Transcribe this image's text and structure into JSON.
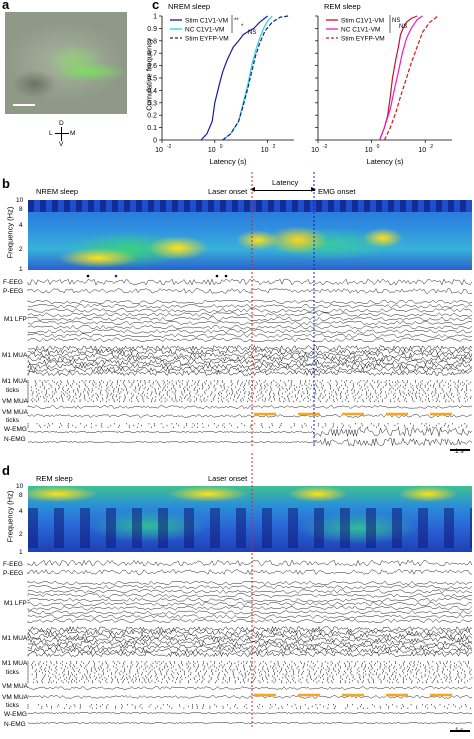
{
  "panels": {
    "a": {
      "letter": "a",
      "compass": {
        "d": "D",
        "l": "L",
        "m": "M",
        "v": "V"
      }
    },
    "c": {
      "letter": "c",
      "shared": {
        "ylabel": "Cumulative frequency",
        "xlabel": "Latency (s)"
      },
      "ytick_labels": [
        "0",
        "0.1",
        "0.2",
        "0.3",
        "0.4",
        "0.5",
        "0.6",
        "0.7",
        "0.8",
        "0.9",
        "1"
      ],
      "xtick_labels": [
        "10",
        "10",
        "10"
      ],
      "xtick_exponents": [
        "-2",
        "0",
        "2"
      ]
    },
    "b": {
      "letter": "b",
      "state": "NREM sleep",
      "laser_onset": "Laser onset",
      "latency": "Latency",
      "emg_onset": "EMG onset",
      "freq_axis_label": "Frequency (Hz)",
      "freq_ticks": [
        "10",
        "8",
        "4",
        "2",
        "1"
      ],
      "trace_labels": [
        "F-EEG",
        "P-EEG",
        "M1 LFP",
        "M1 MUA",
        "M1 MUA",
        "ticks",
        "VM MUA",
        "VM MUA",
        "ticks",
        "W-EMG",
        "N-EMG"
      ],
      "scale_bar": "1 s"
    },
    "d": {
      "letter": "d",
      "state": "REM sleep",
      "laser_onset": "Laser onset",
      "freq_axis_label": "Frequency (Hz)",
      "freq_ticks": [
        "10",
        "8",
        "4",
        "2",
        "1"
      ],
      "trace_labels": [
        "F-EEG",
        "P-EEG",
        "M1 LFP",
        "M1 MUA",
        "M1 MUA",
        "ticks",
        "VM MUA",
        "VM MUA",
        "ticks",
        "W-EMG",
        "N-EMG"
      ],
      "scale_bar": "1 s"
    }
  },
  "colors": {
    "stim_c1v1_nrem": "#1a1aa6",
    "nc_c1v1_nrem": "#22d4e0",
    "stim_eyfp_nrem": "#1a1a80",
    "stim_c1v1_rem": "#c8102e",
    "nc_c1v1_rem": "#e020c8",
    "stim_eyfp_rem": "#d01818",
    "laser_line": "#e02020",
    "emg_line": "#1a1ad0",
    "stim_bars": "#f5a623"
  },
  "chart_data": [
    {
      "type": "line",
      "title": "NREM sleep",
      "xlabel": "Latency (s)",
      "ylabel": "Cumulative frequency",
      "x_scale": "log",
      "xlim": [
        0.01,
        1000
      ],
      "ylim": [
        0,
        1
      ],
      "grid": false,
      "legend": "top-left",
      "significance": [
        "**",
        "*",
        "NS"
      ],
      "series": [
        {
          "name": "Stim C1V1-VM",
          "style": "solid",
          "color": "#1a1aa6",
          "x": [
            0.3,
            0.5,
            0.8,
            1.0,
            1.5,
            2,
            3,
            5,
            8,
            12,
            20,
            30,
            50,
            100
          ],
          "y": [
            0.0,
            0.05,
            0.15,
            0.3,
            0.45,
            0.55,
            0.65,
            0.75,
            0.8,
            0.85,
            0.88,
            0.9,
            0.95,
            1.0
          ]
        },
        {
          "name": "NC C1V1-VM",
          "style": "solid",
          "color": "#22d4e0",
          "x": [
            2,
            4,
            8,
            12,
            18,
            25,
            35,
            50,
            70,
            100,
            150
          ],
          "y": [
            0.0,
            0.05,
            0.15,
            0.3,
            0.45,
            0.6,
            0.72,
            0.82,
            0.9,
            0.96,
            1.0
          ]
        },
        {
          "name": "Stim EYFP-VM",
          "style": "dashed",
          "color": "#1a1a80",
          "x": [
            2,
            4,
            8,
            12,
            18,
            25,
            35,
            50,
            80,
            150,
            300,
            600
          ],
          "y": [
            0.0,
            0.05,
            0.15,
            0.28,
            0.42,
            0.55,
            0.68,
            0.78,
            0.88,
            0.95,
            0.99,
            1.0
          ]
        }
      ]
    },
    {
      "type": "line",
      "title": "REM sleep",
      "xlabel": "Latency (s)",
      "ylabel": "Cumulative frequency",
      "x_scale": "log",
      "xlim": [
        0.01,
        1000
      ],
      "ylim": [
        0,
        1
      ],
      "grid": false,
      "legend": "top-left",
      "significance": [
        "NS",
        "NS"
      ],
      "series": [
        {
          "name": "Stim C1V1-VM",
          "style": "solid",
          "color": "#c8102e",
          "x": [
            2,
            3,
            4,
            5,
            6,
            8,
            10,
            12,
            15,
            20,
            30,
            50
          ],
          "y": [
            0.0,
            0.1,
            0.2,
            0.35,
            0.5,
            0.65,
            0.75,
            0.85,
            0.9,
            0.95,
            0.98,
            1.0
          ]
        },
        {
          "name": "NC C1V1-VM",
          "style": "solid",
          "color": "#e020c8",
          "x": [
            2,
            3,
            5,
            7,
            10,
            14,
            20,
            30,
            50,
            80
          ],
          "y": [
            0.0,
            0.1,
            0.25,
            0.4,
            0.55,
            0.7,
            0.82,
            0.9,
            0.97,
            1.0
          ]
        },
        {
          "name": "Stim EYFP-VM",
          "style": "dashed",
          "color": "#d01818",
          "x": [
            3,
            5,
            8,
            12,
            20,
            30,
            50,
            80,
            150,
            300
          ],
          "y": [
            0.0,
            0.1,
            0.22,
            0.35,
            0.5,
            0.62,
            0.75,
            0.87,
            0.95,
            1.0
          ]
        }
      ]
    }
  ]
}
